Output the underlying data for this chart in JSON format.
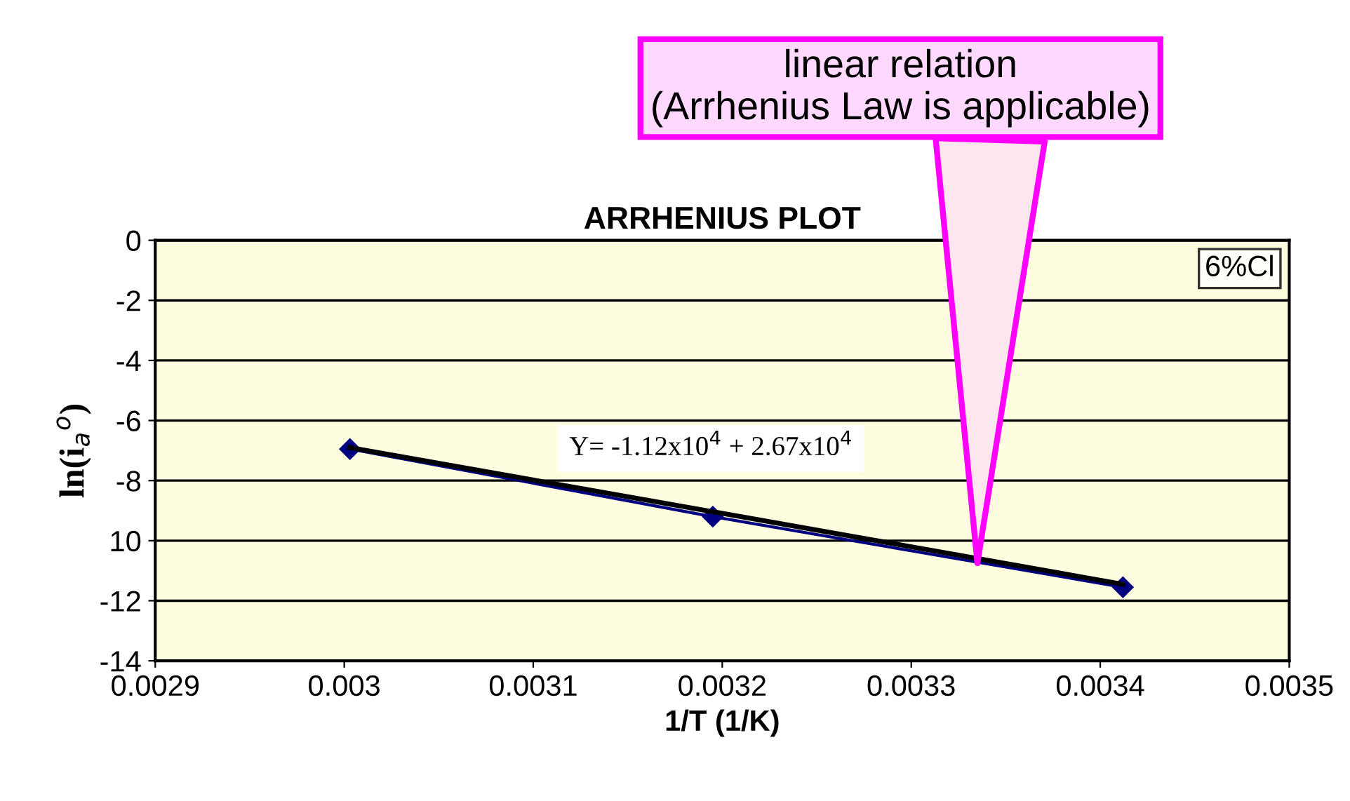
{
  "chart_data": {
    "type": "line",
    "title": "ARRHENIUS PLOT",
    "xlabel": "1/T (1/K)",
    "ylabel": "ln(i$_{a}$$^{o}$)",
    "series": [
      {
        "name": "6%Cl",
        "color": "#000080",
        "marker": "diamond",
        "x": [
          0.003003,
          0.003195,
          0.003412
        ],
        "values": [
          -6.95,
          -9.2,
          -11.55
        ]
      },
      {
        "color": "#000000",
        "marker": "none",
        "x": [
          0.003003,
          0.003412
        ],
        "values": [
          -6.9,
          -11.45
        ]
      }
    ],
    "xlim": [
      0.0029,
      0.0035
    ],
    "xticks": [
      0.0029,
      0.003,
      0.0031,
      0.0032,
      0.0033,
      0.0034,
      0.0035
    ],
    "ylim": [
      -14,
      0
    ],
    "yticks": [
      0,
      -2,
      -4,
      -6,
      -8,
      {
        "value": -10,
        "label": "10"
      },
      -12,
      -14
    ],
    "grid": "y",
    "legend": "top right",
    "annotations": [
      "Y= -1.12x10$^{4}$ + 2.67x10$^{4}$",
      {
        "text": "linear relation\n(Arrhenius Law is applicable)",
        "x": 0.003335,
        "y": -10.75
      }
    ]
  }
}
